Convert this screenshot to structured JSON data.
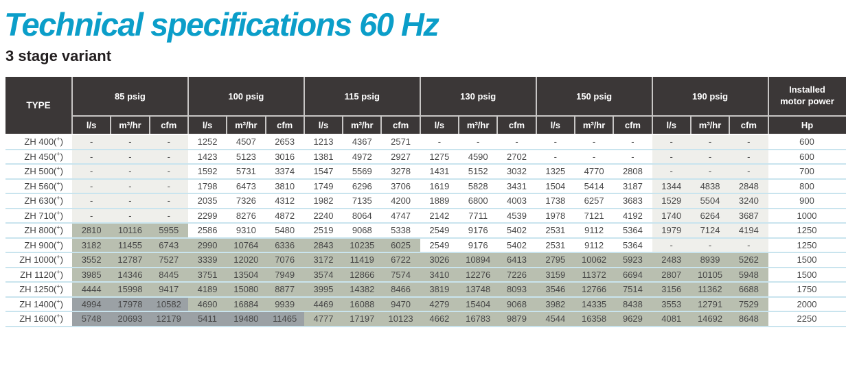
{
  "page": {
    "title": "Technical specifications 60 Hz",
    "subtitle": "3 stage variant"
  },
  "colors": {
    "accent_title": "#0b9ec9",
    "header_bg": "#3b3737",
    "header_text": "#ffffff",
    "row_divider": "#c9e4ee",
    "shades": {
      "white": "#ffffff",
      "light": "#efefeb",
      "medium": "#b9bfb0",
      "dark": "#9ba1a5"
    }
  },
  "table": {
    "type_header": "TYPE",
    "pressure_groups": [
      "85 psig",
      "100 psig",
      "115 psig",
      "130 psig",
      "150 psig",
      "190 psig"
    ],
    "unit_headers": [
      "l/s",
      "m³/hr",
      "cfm"
    ],
    "power_header": "Installed motor power",
    "power_unit": "Hp",
    "rows": [
      {
        "type": "ZH 400",
        "sup": "+",
        "hp": "600",
        "groups": [
          {
            "shade": "light",
            "values": [
              "-",
              "-",
              "-"
            ]
          },
          {
            "shade": "white",
            "values": [
              "1252",
              "4507",
              "2653"
            ]
          },
          {
            "shade": "white",
            "values": [
              "1213",
              "4367",
              "2571"
            ]
          },
          {
            "shade": "white",
            "values": [
              "-",
              "-",
              "-"
            ]
          },
          {
            "shade": "white",
            "values": [
              "-",
              "-",
              "-"
            ]
          },
          {
            "shade": "light",
            "values": [
              "-",
              "-",
              "-"
            ]
          }
        ]
      },
      {
        "type": "ZH 450",
        "sup": "+",
        "hp": "600",
        "groups": [
          {
            "shade": "light",
            "values": [
              "-",
              "-",
              "-"
            ]
          },
          {
            "shade": "white",
            "values": [
              "1423",
              "5123",
              "3016"
            ]
          },
          {
            "shade": "white",
            "values": [
              "1381",
              "4972",
              "2927"
            ]
          },
          {
            "shade": "white",
            "values": [
              "1275",
              "4590",
              "2702"
            ]
          },
          {
            "shade": "white",
            "values": [
              "-",
              "-",
              "-"
            ]
          },
          {
            "shade": "light",
            "values": [
              "-",
              "-",
              "-"
            ]
          }
        ]
      },
      {
        "type": "ZH 500",
        "sup": "+",
        "hp": "700",
        "groups": [
          {
            "shade": "light",
            "values": [
              "-",
              "-",
              "-"
            ]
          },
          {
            "shade": "white",
            "values": [
              "1592",
              "5731",
              "3374"
            ]
          },
          {
            "shade": "white",
            "values": [
              "1547",
              "5569",
              "3278"
            ]
          },
          {
            "shade": "white",
            "values": [
              "1431",
              "5152",
              "3032"
            ]
          },
          {
            "shade": "white",
            "values": [
              "1325",
              "4770",
              "2808"
            ]
          },
          {
            "shade": "light",
            "values": [
              "-",
              "-",
              "-"
            ]
          }
        ]
      },
      {
        "type": "ZH 560",
        "sup": "+",
        "hp": "800",
        "groups": [
          {
            "shade": "light",
            "values": [
              "-",
              "-",
              "-"
            ]
          },
          {
            "shade": "white",
            "values": [
              "1798",
              "6473",
              "3810"
            ]
          },
          {
            "shade": "white",
            "values": [
              "1749",
              "6296",
              "3706"
            ]
          },
          {
            "shade": "white",
            "values": [
              "1619",
              "5828",
              "3431"
            ]
          },
          {
            "shade": "white",
            "values": [
              "1504",
              "5414",
              "3187"
            ]
          },
          {
            "shade": "light",
            "values": [
              "1344",
              "4838",
              "2848"
            ]
          }
        ]
      },
      {
        "type": "ZH 630",
        "sup": "+",
        "hp": "900",
        "groups": [
          {
            "shade": "light",
            "values": [
              "-",
              "-",
              "-"
            ]
          },
          {
            "shade": "white",
            "values": [
              "2035",
              "7326",
              "4312"
            ]
          },
          {
            "shade": "white",
            "values": [
              "1982",
              "7135",
              "4200"
            ]
          },
          {
            "shade": "white",
            "values": [
              "1889",
              "6800",
              "4003"
            ]
          },
          {
            "shade": "white",
            "values": [
              "1738",
              "6257",
              "3683"
            ]
          },
          {
            "shade": "light",
            "values": [
              "1529",
              "5504",
              "3240"
            ]
          }
        ]
      },
      {
        "type": "ZH 710",
        "sup": "+",
        "hp": "1000",
        "groups": [
          {
            "shade": "light",
            "values": [
              "-",
              "-",
              "-"
            ]
          },
          {
            "shade": "white",
            "values": [
              "2299",
              "8276",
              "4872"
            ]
          },
          {
            "shade": "white",
            "values": [
              "2240",
              "8064",
              "4747"
            ]
          },
          {
            "shade": "white",
            "values": [
              "2142",
              "7711",
              "4539"
            ]
          },
          {
            "shade": "white",
            "values": [
              "1978",
              "7121",
              "4192"
            ]
          },
          {
            "shade": "light",
            "values": [
              "1740",
              "6264",
              "3687"
            ]
          }
        ]
      },
      {
        "type": "ZH 800",
        "sup": "+",
        "hp": "1250",
        "groups": [
          {
            "shade": "medium",
            "values": [
              "2810",
              "10116",
              "5955"
            ]
          },
          {
            "shade": "white",
            "values": [
              "2586",
              "9310",
              "5480"
            ]
          },
          {
            "shade": "white",
            "values": [
              "2519",
              "9068",
              "5338"
            ]
          },
          {
            "shade": "white",
            "values": [
              "2549",
              "9176",
              "5402"
            ]
          },
          {
            "shade": "white",
            "values": [
              "2531",
              "9112",
              "5364"
            ]
          },
          {
            "shade": "light",
            "values": [
              "1979",
              "7124",
              "4194"
            ]
          }
        ]
      },
      {
        "type": "ZH 900",
        "sup": "+",
        "hp": "1250",
        "groups": [
          {
            "shade": "medium",
            "values": [
              "3182",
              "11455",
              "6743"
            ]
          },
          {
            "shade": "medium",
            "values": [
              "2990",
              "10764",
              "6336"
            ]
          },
          {
            "shade": "medium",
            "values": [
              "2843",
              "10235",
              "6025"
            ]
          },
          {
            "shade": "white",
            "values": [
              "2549",
              "9176",
              "5402"
            ]
          },
          {
            "shade": "white",
            "values": [
              "2531",
              "9112",
              "5364"
            ]
          },
          {
            "shade": "light",
            "values": [
              "-",
              "-",
              "-"
            ]
          }
        ]
      },
      {
        "type": "ZH 1000",
        "sup": "+",
        "hp": "1500",
        "groups": [
          {
            "shade": "medium",
            "values": [
              "3552",
              "12787",
              "7527"
            ]
          },
          {
            "shade": "medium",
            "values": [
              "3339",
              "12020",
              "7076"
            ]
          },
          {
            "shade": "medium",
            "values": [
              "3172",
              "11419",
              "6722"
            ]
          },
          {
            "shade": "medium",
            "values": [
              "3026",
              "10894",
              "6413"
            ]
          },
          {
            "shade": "medium",
            "values": [
              "2795",
              "10062",
              "5923"
            ]
          },
          {
            "shade": "medium",
            "values": [
              "2483",
              "8939",
              "5262"
            ]
          }
        ]
      },
      {
        "type": "ZH 1120",
        "sup": "+",
        "hp": "1500",
        "groups": [
          {
            "shade": "medium",
            "values": [
              "3985",
              "14346",
              "8445"
            ]
          },
          {
            "shade": "medium",
            "values": [
              "3751",
              "13504",
              "7949"
            ]
          },
          {
            "shade": "medium",
            "values": [
              "3574",
              "12866",
              "7574"
            ]
          },
          {
            "shade": "medium",
            "values": [
              "3410",
              "12276",
              "7226"
            ]
          },
          {
            "shade": "medium",
            "values": [
              "3159",
              "11372",
              "6694"
            ]
          },
          {
            "shade": "medium",
            "values": [
              "2807",
              "10105",
              "5948"
            ]
          }
        ]
      },
      {
        "type": "ZH 1250",
        "sup": "+",
        "hp": "1750",
        "groups": [
          {
            "shade": "medium",
            "values": [
              "4444",
              "15998",
              "9417"
            ]
          },
          {
            "shade": "medium",
            "values": [
              "4189",
              "15080",
              "8877"
            ]
          },
          {
            "shade": "medium",
            "values": [
              "3995",
              "14382",
              "8466"
            ]
          },
          {
            "shade": "medium",
            "values": [
              "3819",
              "13748",
              "8093"
            ]
          },
          {
            "shade": "medium",
            "values": [
              "3546",
              "12766",
              "7514"
            ]
          },
          {
            "shade": "medium",
            "values": [
              "3156",
              "11362",
              "6688"
            ]
          }
        ]
      },
      {
        "type": "ZH 1400",
        "sup": "+",
        "hp": "2000",
        "groups": [
          {
            "shade": "dark",
            "values": [
              "4994",
              "17978",
              "10582"
            ]
          },
          {
            "shade": "medium",
            "values": [
              "4690",
              "16884",
              "9939"
            ]
          },
          {
            "shade": "medium",
            "values": [
              "4469",
              "16088",
              "9470"
            ]
          },
          {
            "shade": "medium",
            "values": [
              "4279",
              "15404",
              "9068"
            ]
          },
          {
            "shade": "medium",
            "values": [
              "3982",
              "14335",
              "8438"
            ]
          },
          {
            "shade": "medium",
            "values": [
              "3553",
              "12791",
              "7529"
            ]
          }
        ]
      },
      {
        "type": "ZH 1600",
        "sup": "+",
        "hp": "2250",
        "groups": [
          {
            "shade": "dark",
            "values": [
              "5748",
              "20693",
              "12179"
            ]
          },
          {
            "shade": "dark",
            "values": [
              "5411",
              "19480",
              "11465"
            ]
          },
          {
            "shade": "medium",
            "values": [
              "4777",
              "17197",
              "10123"
            ]
          },
          {
            "shade": "medium",
            "values": [
              "4662",
              "16783",
              "9879"
            ]
          },
          {
            "shade": "medium",
            "values": [
              "4544",
              "16358",
              "9629"
            ]
          },
          {
            "shade": "medium",
            "values": [
              "4081",
              "14692",
              "8648"
            ]
          }
        ]
      }
    ]
  }
}
